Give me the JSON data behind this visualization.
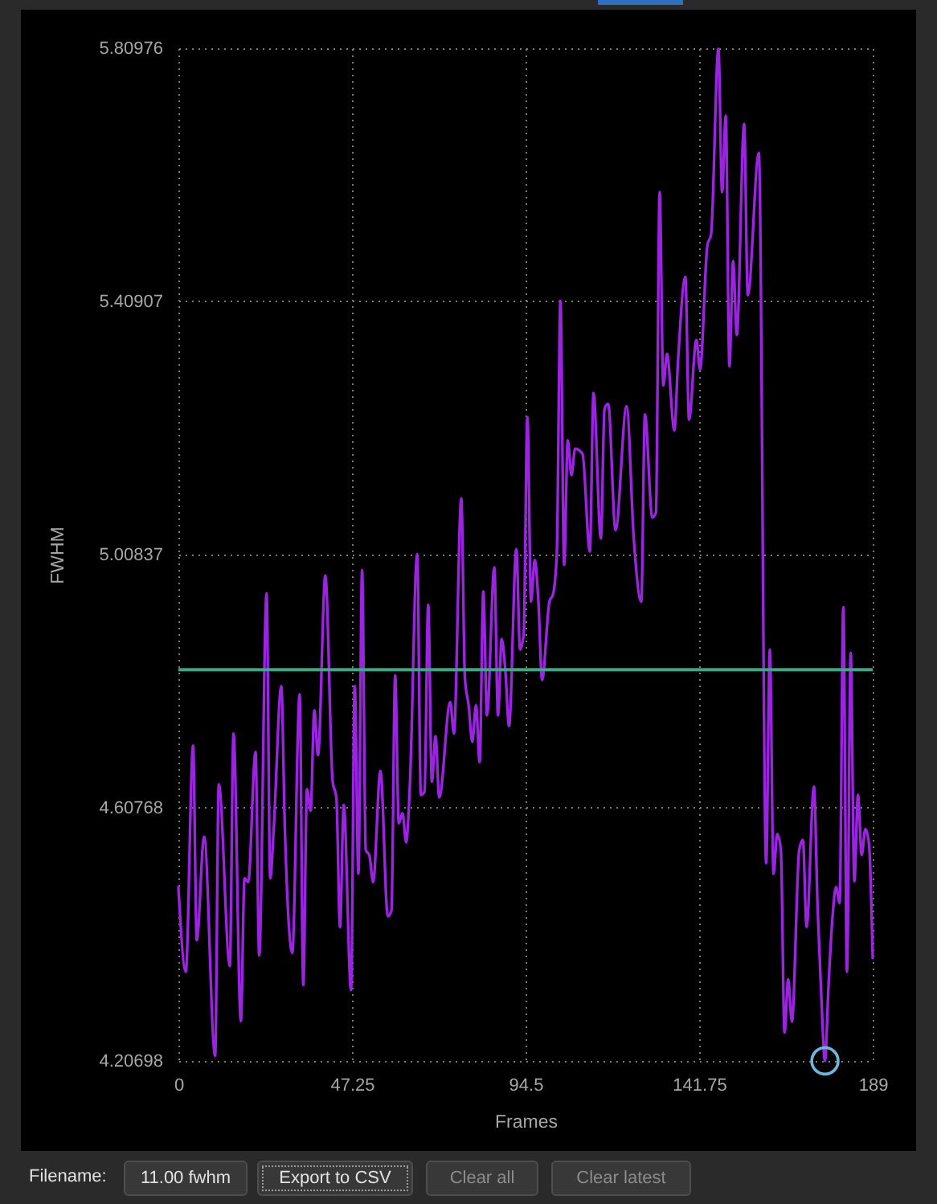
{
  "chart_data": {
    "type": "line",
    "xlabel": "Frames",
    "ylabel": "FWHM",
    "xlim": [
      0,
      189
    ],
    "xticks": [
      0,
      47.25,
      94.5,
      141.75,
      189
    ],
    "ylim": [
      4.20698,
      5.80976
    ],
    "yticks": [
      4.20698,
      4.60768,
      5.00837,
      5.40907,
      5.80976
    ],
    "grid": true,
    "series": [
      {
        "color": "#9b24e0",
        "x": [
          0,
          2,
          4,
          5,
          7,
          10,
          11,
          14,
          15,
          17,
          18,
          19,
          21,
          22,
          24,
          25,
          26,
          28,
          29,
          31,
          33,
          34,
          35,
          36,
          37,
          38,
          40,
          42,
          43,
          44,
          45,
          47,
          48,
          49,
          50,
          51,
          52,
          53,
          55,
          57,
          58,
          59,
          60,
          61,
          62,
          63,
          65,
          66,
          67,
          68,
          69,
          70,
          71,
          74,
          75,
          77,
          78,
          79,
          80,
          81,
          82,
          83,
          84,
          86,
          87,
          88,
          89,
          90,
          92,
          93,
          94,
          95,
          96,
          97,
          98,
          99,
          101,
          102,
          103,
          104,
          105,
          106,
          107,
          108,
          110,
          112,
          113,
          115,
          116,
          117,
          119,
          122,
          124,
          126,
          127,
          129,
          130,
          131,
          132,
          133,
          135,
          136,
          138,
          139,
          141,
          142,
          144,
          145,
          147,
          148,
          149,
          150,
          151,
          152,
          154,
          155,
          158,
          160,
          161,
          162,
          163,
          164,
          165,
          166,
          167,
          169,
          170,
          171,
          173,
          174,
          175,
          176,
          177,
          178,
          179,
          180,
          181,
          182,
          183,
          184,
          185,
          186,
          187,
          188,
          189
        ],
        "values": [
          4.482,
          4.348,
          4.706,
          4.398,
          4.562,
          4.215,
          4.645,
          4.357,
          4.725,
          4.27,
          4.496,
          4.49,
          4.696,
          4.374,
          4.947,
          4.496,
          4.58,
          4.8,
          4.571,
          4.378,
          4.787,
          4.327,
          4.637,
          4.603,
          4.762,
          4.691,
          4.975,
          4.649,
          4.624,
          4.419,
          4.612,
          4.319,
          4.8,
          4.503,
          4.984,
          4.541,
          4.532,
          4.49,
          4.666,
          4.436,
          4.445,
          4.817,
          4.583,
          4.599,
          4.553,
          4.641,
          5.009,
          4.628,
          4.633,
          4.929,
          4.649,
          4.721,
          4.624,
          4.775,
          4.725,
          5.097,
          4.812,
          4.77,
          4.712,
          4.77,
          4.68,
          4.95,
          4.754,
          4.988,
          4.754,
          4.875,
          4.825,
          4.737,
          5.017,
          4.858,
          4.883,
          5.226,
          4.934,
          5.0,
          4.934,
          4.81,
          4.934,
          4.946,
          5.009,
          5.41,
          4.992,
          5.189,
          5.134,
          5.176,
          5.168,
          5.013,
          5.264,
          5.034,
          5.239,
          5.247,
          5.047,
          5.243,
          5.03,
          4.934,
          5.23,
          5.067,
          5.075,
          5.582,
          5.276,
          5.326,
          5.205,
          5.314,
          5.448,
          5.222,
          5.348,
          5.301,
          5.498,
          5.515,
          5.809,
          5.582,
          5.703,
          5.306,
          5.473,
          5.356,
          5.69,
          5.419,
          5.644,
          4.52,
          4.858,
          4.503,
          4.566,
          4.541,
          4.252,
          4.336,
          4.269,
          4.541,
          4.557,
          4.419,
          4.641,
          4.45,
          4.31,
          4.207,
          4.33,
          4.43,
          4.482,
          4.457,
          4.925,
          4.348,
          4.853,
          4.491,
          4.628,
          4.533,
          4.574,
          4.55,
          4.37
        ]
      },
      {
        "type": "scatter",
        "color": "#6fb6dc",
        "marker": "circle",
        "x": [
          176
        ],
        "values": [
          4.207
        ]
      }
    ],
    "ref_lines": [
      {
        "axis": "y",
        "value": 4.826,
        "color": "#3aa882"
      }
    ],
    "annotations": [
      "Filename:",
      "11.00 fwhm",
      "Export to CSV",
      "Clear all",
      "Clear latest"
    ]
  }
}
